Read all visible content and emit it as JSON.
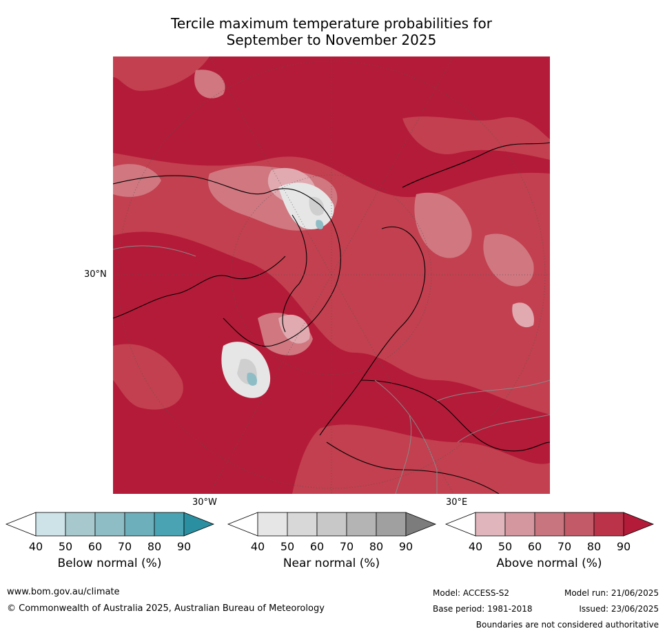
{
  "title_line1": "Tercile maximum temperature probabilities for",
  "title_line2": "September to November 2025",
  "map": {
    "labels": {
      "lat30n": "30°N",
      "lon30w": "30°W",
      "lon30e": "30°E"
    },
    "colors": {
      "above_base": "#b41b38",
      "above_mid": "#c2404f",
      "above_light": "#d07780",
      "above_pale": "#e0aab0",
      "near_light": "#e6e6e6",
      "near_mid": "#cfcfcf",
      "below_light": "#cde3e8",
      "below_mid": "#8ebdc5",
      "coast": "#000000",
      "border": "#8a8a8a",
      "grid": "#555555"
    }
  },
  "colorbars": [
    {
      "title": "Below normal (%)",
      "ticks": [
        "40",
        "50",
        "60",
        "70",
        "80",
        "90"
      ],
      "colors": [
        "#ffffff",
        "#cde3e8",
        "#a7c8cd",
        "#8ebdc5",
        "#6eafbc",
        "#4aa3b3",
        "#2a8fa1"
      ]
    },
    {
      "title": "Near normal (%)",
      "ticks": [
        "40",
        "50",
        "60",
        "70",
        "80",
        "90"
      ],
      "colors": [
        "#ffffff",
        "#e6e6e6",
        "#d8d8d8",
        "#c8c8c8",
        "#b4b4b4",
        "#a0a0a0",
        "#7c7c7c"
      ]
    },
    {
      "title": "Above normal (%)",
      "ticks": [
        "40",
        "50",
        "60",
        "70",
        "80",
        "90"
      ],
      "colors": [
        "#ffffff",
        "#e0b6bc",
        "#d4979f",
        "#c97580",
        "#c25a68",
        "#bb3349",
        "#b41b38"
      ]
    }
  ],
  "footer": {
    "website": "www.bom.gov.au/climate",
    "copyright": "© Commonwealth of Australia 2025, Australian Bureau of Meteorology",
    "model": "Model: ACCESS-S2",
    "base_period": "Base period: 1981-2018",
    "model_run": "Model run: 21/06/2025",
    "issued": "Issued: 23/06/2025",
    "disclaimer": "Boundaries are not considered authoritative"
  }
}
